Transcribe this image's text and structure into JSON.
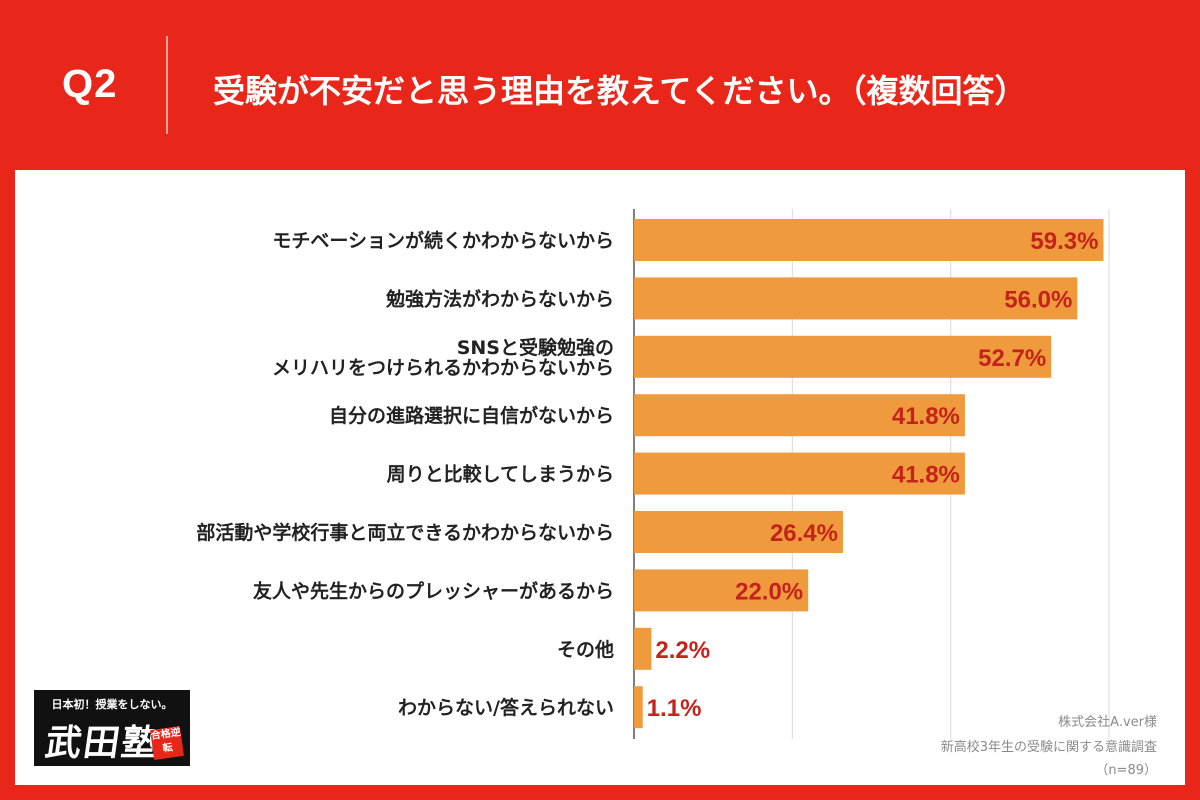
{
  "header": {
    "q_label": "Q2",
    "title": "受験が不安だと思う理由を教えてください。（複数回答）"
  },
  "colors": {
    "background": "#e8271a",
    "bar": "#f09a3e",
    "value_text": "#c4231b",
    "grid": "#d9d9d9"
  },
  "chart_data": {
    "type": "bar",
    "orientation": "horizontal",
    "categories": [
      [
        "モチベーションが続くかわからないから"
      ],
      [
        "勉強方法がわからないから"
      ],
      [
        "SNSと受験勉強の",
        "メリハリをつけられるかわからないから"
      ],
      [
        "自分の進路選択に自信がないから"
      ],
      [
        "周りと比較してしまうから"
      ],
      [
        "部活動や学校行事と両立できるかわからないから"
      ],
      [
        "友人や先生からのプレッシャーがあるから"
      ],
      [
        "その他"
      ],
      [
        "わからない/答えられない"
      ]
    ],
    "values": [
      59.3,
      56.0,
      52.7,
      41.8,
      41.8,
      26.4,
      22.0,
      2.2,
      1.1
    ],
    "value_labels": [
      "59.3%",
      "56.0%",
      "52.7%",
      "41.8%",
      "41.8%",
      "26.4%",
      "22.0%",
      "2.2%",
      "1.1%"
    ],
    "xlim": [
      0,
      60
    ],
    "grid": true,
    "unit": "%"
  },
  "logo": {
    "tagline": "日本初！授業をしない。",
    "name": "武田塾",
    "badge": "合格逆転"
  },
  "credit": {
    "company": "株式会社A.ver様",
    "survey": "新高校3年生の受験に関する意識調査",
    "sample": "（n=89）"
  }
}
